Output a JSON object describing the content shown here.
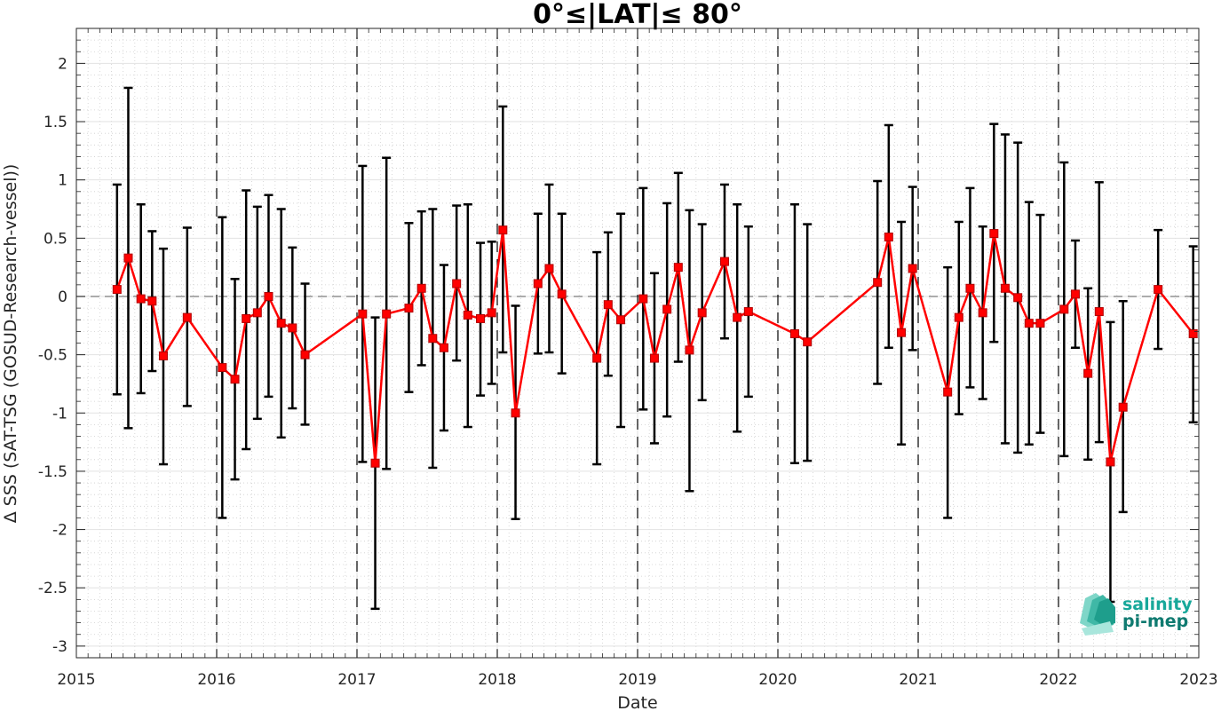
{
  "chart_data": {
    "type": "line",
    "title": "0°≤|LAT|≤ 80°",
    "xlabel": "Date",
    "ylabel": "Δ SSS (SAT-TSG (GOSUD-Research-vessel))",
    "xlim": [
      2015,
      2023
    ],
    "ylim": [
      -3.1,
      2.3
    ],
    "x_ticks": [
      "2015",
      "2016",
      "2017",
      "2018",
      "2019",
      "2020",
      "2021",
      "2022",
      "2023"
    ],
    "y_ticks": [
      "2",
      "1.5",
      "1",
      "0.5",
      "0",
      "-0.5",
      "-1",
      "-1.5",
      "-2",
      "-2.5",
      "-3"
    ],
    "grid": true,
    "zero_line": 0,
    "year_separators": [
      2016,
      2017,
      2018,
      2019,
      2020,
      2021,
      2022
    ],
    "series": [
      {
        "color": "#ff0000",
        "marker": "square",
        "error_bar_color": "#000000",
        "points": [
          {
            "x": 2015.29,
            "y": 0.06,
            "lo": -0.84,
            "hi": 0.96
          },
          {
            "x": 2015.37,
            "y": 0.33,
            "lo": -1.13,
            "hi": 1.79
          },
          {
            "x": 2015.46,
            "y": -0.02,
            "lo": -0.83,
            "hi": 0.79
          },
          {
            "x": 2015.54,
            "y": -0.04,
            "lo": -0.64,
            "hi": 0.56
          },
          {
            "x": 2015.62,
            "y": -0.51,
            "lo": -1.44,
            "hi": 0.41
          },
          {
            "x": 2015.79,
            "y": -0.18,
            "lo": -0.94,
            "hi": 0.59
          },
          {
            "x": 2016.04,
            "y": -0.61,
            "lo": -1.9,
            "hi": 0.68
          },
          {
            "x": 2016.13,
            "y": -0.71,
            "lo": -1.57,
            "hi": 0.15
          },
          {
            "x": 2016.21,
            "y": -0.19,
            "lo": -1.31,
            "hi": 0.91
          },
          {
            "x": 2016.29,
            "y": -0.14,
            "lo": -1.05,
            "hi": 0.77
          },
          {
            "x": 2016.37,
            "y": 0.0,
            "lo": -0.86,
            "hi": 0.87
          },
          {
            "x": 2016.46,
            "y": -0.23,
            "lo": -1.21,
            "hi": 0.75
          },
          {
            "x": 2016.54,
            "y": -0.27,
            "lo": -0.96,
            "hi": 0.42
          },
          {
            "x": 2016.63,
            "y": -0.5,
            "lo": -1.1,
            "hi": 0.11
          },
          {
            "x": 2017.04,
            "y": -0.15,
            "lo": -1.42,
            "hi": 1.12
          },
          {
            "x": 2017.13,
            "y": -1.43,
            "lo": -2.68,
            "hi": -0.18
          },
          {
            "x": 2017.21,
            "y": -0.15,
            "lo": -1.48,
            "hi": 1.19
          },
          {
            "x": 2017.37,
            "y": -0.1,
            "lo": -0.82,
            "hi": 0.63
          },
          {
            "x": 2017.46,
            "y": 0.07,
            "lo": -0.59,
            "hi": 0.73
          },
          {
            "x": 2017.54,
            "y": -0.36,
            "lo": -1.47,
            "hi": 0.75
          },
          {
            "x": 2017.62,
            "y": -0.44,
            "lo": -1.15,
            "hi": 0.27
          },
          {
            "x": 2017.71,
            "y": 0.11,
            "lo": -0.55,
            "hi": 0.78
          },
          {
            "x": 2017.79,
            "y": -0.16,
            "lo": -1.12,
            "hi": 0.79
          },
          {
            "x": 2017.88,
            "y": -0.19,
            "lo": -0.85,
            "hi": 0.46
          },
          {
            "x": 2017.96,
            "y": -0.14,
            "lo": -0.75,
            "hi": 0.47
          },
          {
            "x": 2018.04,
            "y": 0.57,
            "lo": -0.48,
            "hi": 1.63
          },
          {
            "x": 2018.13,
            "y": -1.0,
            "lo": -1.91,
            "hi": -0.08
          },
          {
            "x": 2018.29,
            "y": 0.11,
            "lo": -0.49,
            "hi": 0.71
          },
          {
            "x": 2018.37,
            "y": 0.24,
            "lo": -0.48,
            "hi": 0.96
          },
          {
            "x": 2018.46,
            "y": 0.02,
            "lo": -0.66,
            "hi": 0.71
          },
          {
            "x": 2018.71,
            "y": -0.53,
            "lo": -1.44,
            "hi": 0.38
          },
          {
            "x": 2018.79,
            "y": -0.07,
            "lo": -0.68,
            "hi": 0.55
          },
          {
            "x": 2018.88,
            "y": -0.2,
            "lo": -1.12,
            "hi": 0.71
          },
          {
            "x": 2019.04,
            "y": -0.02,
            "lo": -0.97,
            "hi": 0.93
          },
          {
            "x": 2019.12,
            "y": -0.53,
            "lo": -1.26,
            "hi": 0.2
          },
          {
            "x": 2019.21,
            "y": -0.11,
            "lo": -1.03,
            "hi": 0.8
          },
          {
            "x": 2019.29,
            "y": 0.25,
            "lo": -0.56,
            "hi": 1.06
          },
          {
            "x": 2019.37,
            "y": -0.46,
            "lo": -1.67,
            "hi": 0.74
          },
          {
            "x": 2019.46,
            "y": -0.14,
            "lo": -0.89,
            "hi": 0.62
          },
          {
            "x": 2019.62,
            "y": 0.3,
            "lo": -0.36,
            "hi": 0.96
          },
          {
            "x": 2019.71,
            "y": -0.18,
            "lo": -1.16,
            "hi": 0.79
          },
          {
            "x": 2019.79,
            "y": -0.13,
            "lo": -0.86,
            "hi": 0.6
          },
          {
            "x": 2020.12,
            "y": -0.32,
            "lo": -1.43,
            "hi": 0.79
          },
          {
            "x": 2020.21,
            "y": -0.39,
            "lo": -1.41,
            "hi": 0.62
          },
          {
            "x": 2020.71,
            "y": 0.12,
            "lo": -0.75,
            "hi": 0.99
          },
          {
            "x": 2020.79,
            "y": 0.51,
            "lo": -0.44,
            "hi": 1.47
          },
          {
            "x": 2020.88,
            "y": -0.31,
            "lo": -1.27,
            "hi": 0.64
          },
          {
            "x": 2020.96,
            "y": 0.24,
            "lo": -0.46,
            "hi": 0.94
          },
          {
            "x": 2021.21,
            "y": -0.82,
            "lo": -1.9,
            "hi": 0.25
          },
          {
            "x": 2021.29,
            "y": -0.18,
            "lo": -1.01,
            "hi": 0.64
          },
          {
            "x": 2021.37,
            "y": 0.07,
            "lo": -0.78,
            "hi": 0.93
          },
          {
            "x": 2021.46,
            "y": -0.14,
            "lo": -0.88,
            "hi": 0.6
          },
          {
            "x": 2021.54,
            "y": 0.54,
            "lo": -0.39,
            "hi": 1.48
          },
          {
            "x": 2021.62,
            "y": 0.07,
            "lo": -1.26,
            "hi": 1.39
          },
          {
            "x": 2021.71,
            "y": -0.01,
            "lo": -1.34,
            "hi": 1.32
          },
          {
            "x": 2021.79,
            "y": -0.23,
            "lo": -1.27,
            "hi": 0.81
          },
          {
            "x": 2021.87,
            "y": -0.23,
            "lo": -1.17,
            "hi": 0.7
          },
          {
            "x": 2022.04,
            "y": -0.11,
            "lo": -1.37,
            "hi": 1.15
          },
          {
            "x": 2022.12,
            "y": 0.02,
            "lo": -0.44,
            "hi": 0.48
          },
          {
            "x": 2022.21,
            "y": -0.66,
            "lo": -1.4,
            "hi": 0.07
          },
          {
            "x": 2022.29,
            "y": -0.13,
            "lo": -1.25,
            "hi": 0.98
          },
          {
            "x": 2022.37,
            "y": -1.42,
            "lo": -2.62,
            "hi": -0.22
          },
          {
            "x": 2022.46,
            "y": -0.95,
            "lo": -1.85,
            "hi": -0.04
          },
          {
            "x": 2022.71,
            "y": 0.06,
            "lo": -0.45,
            "hi": 0.57
          },
          {
            "x": 2022.96,
            "y": -0.32,
            "lo": -1.08,
            "hi": 0.43
          }
        ]
      }
    ]
  },
  "logo": {
    "line1": "salinity",
    "line2": "pi-mep",
    "line1_color": "#17a89a",
    "line2_color": "#0f7a70"
  }
}
